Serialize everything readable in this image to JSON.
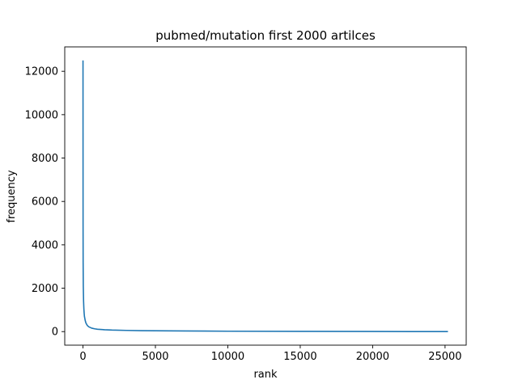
{
  "chart_data": {
    "type": "line",
    "title": "pubmed/mutation first 2000 artilces",
    "xlabel": "rank",
    "ylabel": "frequency",
    "xlim": [
      -1260,
      26460
    ],
    "ylim": [
      -625,
      13125
    ],
    "xticks": [
      0,
      5000,
      10000,
      15000,
      20000,
      25000
    ],
    "yticks": [
      0,
      2000,
      4000,
      6000,
      8000,
      10000,
      12000
    ],
    "grid": false,
    "series": [
      {
        "color": "#1f77b4",
        "x": [
          0,
          5,
          10,
          20,
          40,
          60,
          80,
          100,
          150,
          200,
          300,
          400,
          600,
          800,
          1000,
          1500,
          2000,
          3000,
          4000,
          5000,
          7000,
          10000,
          15000,
          20000,
          25200
        ],
        "values": [
          12500,
          5000,
          3200,
          2100,
          1400,
          1050,
          850,
          700,
          520,
          400,
          280,
          220,
          160,
          130,
          110,
          85,
          70,
          55,
          45,
          38,
          28,
          18,
          10,
          5,
          1
        ]
      }
    ]
  }
}
